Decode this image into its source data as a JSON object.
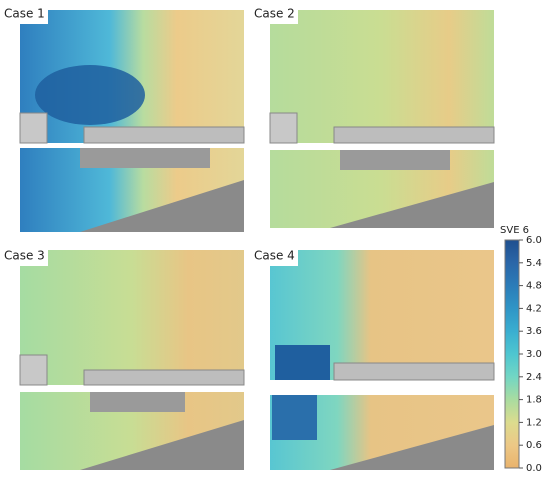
{
  "panels": [
    {
      "label": "Case 1"
    },
    {
      "label": "Case 2"
    },
    {
      "label": "Case 3"
    },
    {
      "label": "Case 4"
    }
  ],
  "colorbar": {
    "title": "SVE 6",
    "lim": [
      0,
      6
    ],
    "ticks": [
      {
        "value": 6,
        "label": "6.0"
      },
      {
        "value": 5.4,
        "label": "5.4"
      },
      {
        "value": 4.8,
        "label": "4.8"
      },
      {
        "value": 4.2,
        "label": "4.2"
      },
      {
        "value": 3.6,
        "label": "3.6"
      },
      {
        "value": 3,
        "label": "3.0"
      },
      {
        "value": 2.4,
        "label": "2.4"
      },
      {
        "value": 1.8,
        "label": "1.8"
      },
      {
        "value": 1.2,
        "label": "1.2"
      },
      {
        "value": 0.6,
        "label": "0.6"
      },
      {
        "value": 0,
        "label": "0.0"
      }
    ]
  }
}
